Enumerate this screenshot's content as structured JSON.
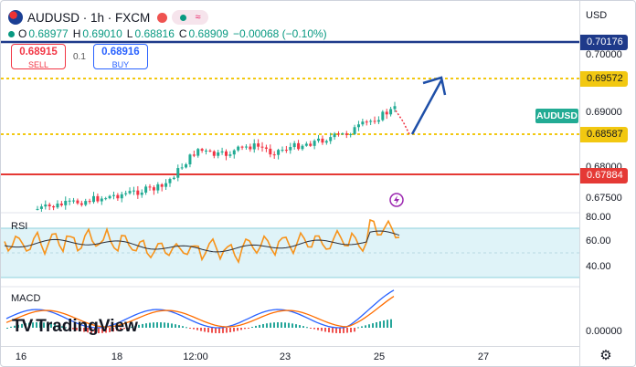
{
  "symbol": {
    "title": "AUDUSD · 1h · FXCM",
    "short": "AUDUSD"
  },
  "ohlc": {
    "o_label": "O",
    "o": "0.68977",
    "h_label": "H",
    "h": "0.69010",
    "l_label": "L",
    "l": "0.68816",
    "c_label": "C",
    "c": "0.68909",
    "change": "−0.00068 (−0.10%)"
  },
  "trade": {
    "sell_price": "0.68915",
    "sell_label": "SELL",
    "spread": "0.1",
    "buy_price": "0.68916",
    "buy_label": "BUY"
  },
  "currency": "USD",
  "price_axis": {
    "level_labels": [
      {
        "text": "0.70176",
        "kind": "resistance"
      },
      {
        "text": "0.69572",
        "kind": "target"
      },
      {
        "text": "0.68587",
        "kind": "support"
      },
      {
        "text": "0.67884",
        "kind": "support-strong"
      }
    ],
    "ticks": [
      "0.70000",
      "0.69000",
      "0.68000",
      "0.67500"
    ]
  },
  "rsi": {
    "label": "RSI",
    "ticks": [
      "80.00",
      "60.00",
      "40.00"
    ]
  },
  "macd": {
    "label": "MACD",
    "ticks": [
      "0.00000"
    ]
  },
  "time_axis": [
    "16",
    "18",
    "12:00",
    "23",
    "25",
    "27"
  ],
  "logo_text": "TradingView",
  "colors": {
    "resistance": "#1e3a8a",
    "target": "#f2c811",
    "support_strong": "#e53935",
    "up": "#22ab94",
    "down": "#f23645",
    "arrow": "#1e4fa8",
    "rsi_fill": "#dff3f8",
    "rsi_line": "#f7931a",
    "rsi_ma": "#2a2e39",
    "macd_line": "#2962ff",
    "macd_signal": "#ff6d00",
    "hist_up": "#26a69a",
    "hist_down": "#ef5350",
    "event": "#9c27b0"
  },
  "icons": [
    "flag-icon",
    "lightning-icon",
    "gear-icon"
  ]
}
